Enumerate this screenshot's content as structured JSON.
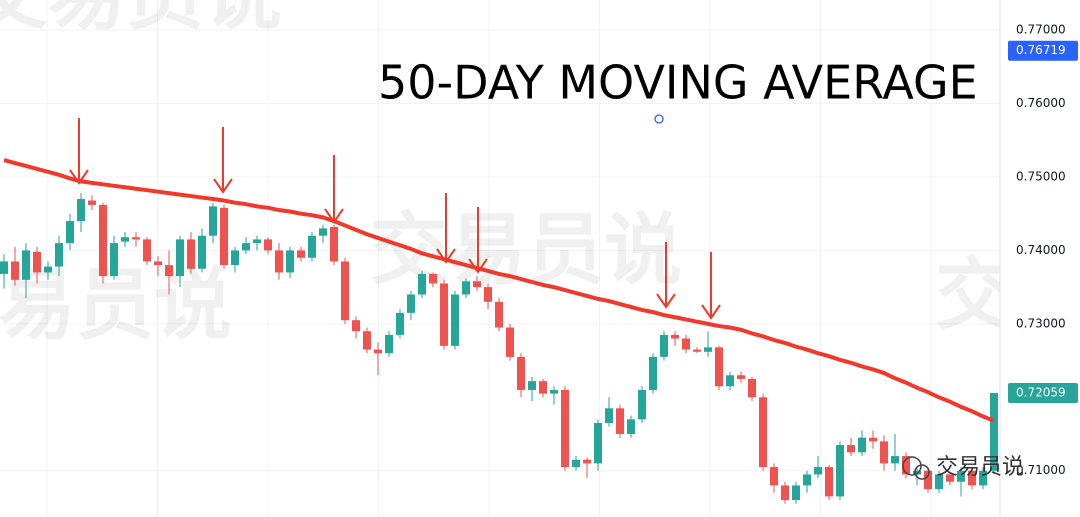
{
  "chart_data": {
    "type": "candlestick",
    "title": "50-DAY MOVING AVERAGE",
    "watermark": "交易员说",
    "up_color": "#26a69a",
    "down_color": "#ef5350",
    "ylim": [
      0.7037,
      0.7741
    ],
    "yticks": [
      {
        "value": 0.77,
        "label": "0.77000"
      },
      {
        "value": 0.76,
        "label": "0.76000"
      },
      {
        "value": 0.75,
        "label": "0.75000"
      },
      {
        "value": 0.74,
        "label": "0.74000"
      },
      {
        "value": 0.73,
        "label": "0.73000"
      },
      {
        "value": 0.71,
        "label": "0.71000"
      }
    ],
    "grid": true,
    "open": [
      0.7368,
      0.7385,
      0.736,
      0.7398,
      0.737,
      0.7378,
      0.741,
      0.744,
      0.7468,
      0.7462,
      0.7365,
      0.7412,
      0.7418,
      0.7415,
      0.7385,
      0.738,
      0.7365,
      0.7415,
      0.7375,
      0.742,
      0.7458,
      0.738,
      0.74,
      0.741,
      0.7415,
      0.74,
      0.737,
      0.74,
      0.739,
      0.742,
      0.7432,
      0.7385,
      0.7305,
      0.729,
      0.7265,
      0.726,
      0.7285,
      0.7315,
      0.734,
      0.7368,
      0.7355,
      0.727,
      0.734,
      0.7358,
      0.735,
      0.733,
      0.7295,
      0.7255,
      0.721,
      0.7222,
      0.7205,
      0.721,
      0.7105,
      0.7115,
      0.711,
      0.7165,
      0.7185,
      0.715,
      0.717,
      0.721,
      0.7255,
      0.7285,
      0.728,
      0.7265,
      0.7262,
      0.7268,
      0.7215,
      0.723,
      0.7225,
      0.72,
      0.7105,
      0.708,
      0.706,
      0.708,
      0.7095,
      0.7105,
      0.7065,
      0.7135,
      0.7125,
      0.7145,
      0.714,
      0.711,
      0.712,
      0.7095,
      0.71,
      0.7075,
      0.7095,
      0.7085,
      0.71,
      0.708,
      0.71
    ],
    "high": [
      0.7395,
      0.7405,
      0.741,
      0.7405,
      0.7385,
      0.742,
      0.745,
      0.7478,
      0.7475,
      0.7465,
      0.742,
      0.7425,
      0.7425,
      0.7418,
      0.7392,
      0.74,
      0.742,
      0.7425,
      0.743,
      0.7465,
      0.7462,
      0.7405,
      0.7418,
      0.742,
      0.7418,
      0.741,
      0.7405,
      0.7405,
      0.7425,
      0.7435,
      0.7435,
      0.739,
      0.731,
      0.7295,
      0.7275,
      0.729,
      0.732,
      0.7345,
      0.7372,
      0.737,
      0.736,
      0.7345,
      0.7362,
      0.7365,
      0.7355,
      0.7335,
      0.73,
      0.726,
      0.7228,
      0.7225,
      0.7215,
      0.7215,
      0.712,
      0.7118,
      0.717,
      0.72,
      0.719,
      0.7175,
      0.7215,
      0.726,
      0.729,
      0.729,
      0.7285,
      0.7268,
      0.729,
      0.727,
      0.7235,
      0.7235,
      0.7228,
      0.7205,
      0.711,
      0.7085,
      0.7085,
      0.71,
      0.712,
      0.7108,
      0.714,
      0.7145,
      0.7155,
      0.7155,
      0.7148,
      0.715,
      0.7125,
      0.7105,
      0.7102,
      0.71,
      0.7098,
      0.7105,
      0.7102,
      0.7105,
      0.72059
    ],
    "low": [
      0.7348,
      0.7352,
      0.7335,
      0.7355,
      0.736,
      0.7365,
      0.74,
      0.7425,
      0.7455,
      0.7355,
      0.736,
      0.7405,
      0.7405,
      0.738,
      0.7365,
      0.734,
      0.735,
      0.7368,
      0.737,
      0.741,
      0.7375,
      0.737,
      0.7395,
      0.74,
      0.7395,
      0.736,
      0.7362,
      0.7385,
      0.7385,
      0.741,
      0.738,
      0.73,
      0.728,
      0.726,
      0.723,
      0.7255,
      0.728,
      0.7305,
      0.7335,
      0.735,
      0.7265,
      0.7265,
      0.7335,
      0.7345,
      0.732,
      0.729,
      0.725,
      0.72,
      0.7195,
      0.72,
      0.719,
      0.71,
      0.71,
      0.709,
      0.71,
      0.716,
      0.7145,
      0.7145,
      0.7165,
      0.7205,
      0.725,
      0.727,
      0.726,
      0.726,
      0.7255,
      0.721,
      0.721,
      0.722,
      0.7195,
      0.71,
      0.707,
      0.7055,
      0.7055,
      0.707,
      0.709,
      0.706,
      0.706,
      0.712,
      0.712,
      0.713,
      0.71,
      0.71,
      0.709,
      0.708,
      0.707,
      0.707,
      0.708,
      0.7065,
      0.7075,
      0.7075,
      0.7095
    ],
    "close": [
      0.7385,
      0.736,
      0.74,
      0.737,
      0.7378,
      0.741,
      0.744,
      0.747,
      0.7462,
      0.7365,
      0.741,
      0.7418,
      0.7415,
      0.7385,
      0.738,
      0.7365,
      0.7415,
      0.7375,
      0.742,
      0.746,
      0.738,
      0.74,
      0.741,
      0.7415,
      0.74,
      0.737,
      0.74,
      0.739,
      0.742,
      0.743,
      0.7385,
      0.7305,
      0.729,
      0.7265,
      0.726,
      0.7285,
      0.7315,
      0.734,
      0.7368,
      0.7355,
      0.727,
      0.734,
      0.7358,
      0.735,
      0.733,
      0.7295,
      0.7255,
      0.721,
      0.7222,
      0.7205,
      0.721,
      0.7105,
      0.7115,
      0.711,
      0.7165,
      0.7185,
      0.715,
      0.717,
      0.721,
      0.7255,
      0.7285,
      0.728,
      0.7265,
      0.7262,
      0.7268,
      0.7215,
      0.723,
      0.7225,
      0.72,
      0.7105,
      0.708,
      0.706,
      0.708,
      0.7095,
      0.7105,
      0.7065,
      0.7135,
      0.7125,
      0.7145,
      0.714,
      0.711,
      0.712,
      0.7095,
      0.71,
      0.7075,
      0.7095,
      0.7085,
      0.71,
      0.708,
      0.71,
      0.72059
    ],
    "ma_color": "#f0392b",
    "ma_values": [
      0.7523,
      0.7519,
      0.7515,
      0.7511,
      0.7507,
      0.7503,
      0.7498,
      0.7494,
      0.7492,
      0.749,
      0.7488,
      0.7486,
      0.7484,
      0.7482,
      0.748,
      0.7478,
      0.7476,
      0.7474,
      0.7472,
      0.747,
      0.7468,
      0.7465,
      0.7463,
      0.746,
      0.7458,
      0.7455,
      0.7453,
      0.745,
      0.7448,
      0.7445,
      0.744,
      0.7434,
      0.7428,
      0.7422,
      0.7417,
      0.7412,
      0.7407,
      0.7402,
      0.7396,
      0.7392,
      0.7388,
      0.7384,
      0.738,
      0.7376,
      0.7372,
      0.7368,
      0.7365,
      0.7361,
      0.7357,
      0.7353,
      0.735,
      0.7346,
      0.7342,
      0.7338,
      0.7334,
      0.7331,
      0.7327,
      0.7323,
      0.7319,
      0.7316,
      0.7312,
      0.7309,
      0.7306,
      0.7303,
      0.73,
      0.7297,
      0.7295,
      0.7292,
      0.7287,
      0.7283,
      0.7278,
      0.7274,
      0.7269,
      0.7265,
      0.726,
      0.7256,
      0.7251,
      0.7247,
      0.7242,
      0.7238,
      0.7233,
      0.7226,
      0.722,
      0.7213,
      0.7207,
      0.72,
      0.7194,
      0.7187,
      0.7181,
      0.7174,
      0.7168
    ],
    "price_labels": [
      {
        "value": 0.76719,
        "color": "#2962ff"
      },
      {
        "value": 0.72059,
        "color": "#26a69a"
      }
    ]
  }
}
